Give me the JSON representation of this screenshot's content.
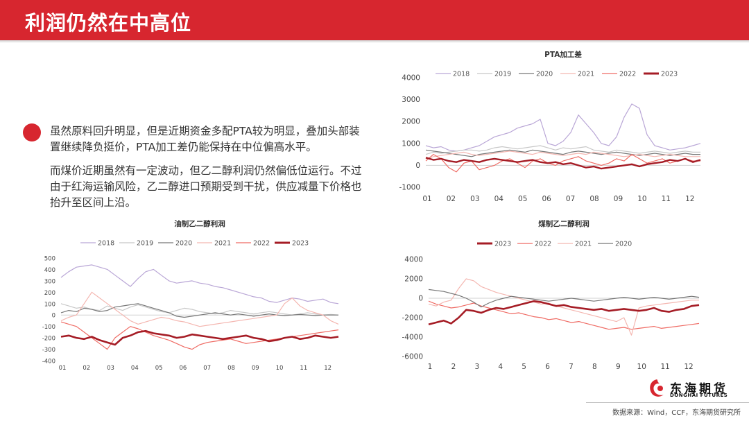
{
  "page": {
    "title": "利润仍然在中高位",
    "paragraph1": "虽然原料回升明显，但是近期资金多配PTA较为明显，叠加头部装置继续降负挺价，PTA加工差仍能保持在中位偏高水平。",
    "paragraph2": "而煤价近期虽然有一定波动，但乙二醇利润仍然偏低位运行。不过由于红海运输风险，乙二醇进口预期受到干扰，供应减量下价格也抬升至区间上沿。",
    "source": "数据来源：Wind，CCF，东海期货研究所",
    "logo_name": "东海期货",
    "logo_sub": "DONGHAI FUTURES"
  },
  "chart_data": [
    {
      "id": "pta",
      "type": "line",
      "title": "PTA加工差",
      "legend_position": "top",
      "x_ticks": [
        "01",
        "02",
        "03",
        "04",
        "05",
        "06",
        "07",
        "08",
        "09",
        "10",
        "11",
        "12"
      ],
      "y_ticks": [
        "4000",
        "3000",
        "2000",
        "1000",
        "0",
        "-1000"
      ],
      "ylim": [
        -1000,
        4000
      ],
      "series": [
        {
          "name": "2018",
          "color": "#b9a6d6",
          "width": 1.2,
          "values": [
            900,
            800,
            850,
            700,
            650,
            700,
            800,
            900,
            1100,
            1300,
            1400,
            1500,
            1700,
            1800,
            1900,
            2100,
            1000,
            900,
            1100,
            1500,
            2300,
            1900,
            1500,
            1000,
            900,
            1300,
            2200,
            2800,
            2600,
            1400,
            900,
            800,
            700,
            750,
            800,
            900,
            1000
          ]
        },
        {
          "name": "2019",
          "color": "#c8c8c8",
          "width": 1.2,
          "values": [
            500,
            600,
            550,
            600,
            650,
            700,
            700,
            650,
            700,
            800,
            850,
            800,
            750,
            800,
            850,
            900,
            800,
            700,
            800,
            750,
            800,
            850,
            700,
            650,
            600,
            700,
            650,
            600,
            550,
            600,
            650,
            600,
            550,
            600,
            650,
            600,
            600
          ]
        },
        {
          "name": "2020",
          "color": "#777777",
          "width": 1.2,
          "values": [
            700,
            650,
            600,
            550,
            500,
            450,
            400,
            500,
            550,
            600,
            650,
            700,
            650,
            600,
            700,
            650,
            600,
            550,
            500,
            600,
            650,
            600,
            550,
            500,
            550,
            600,
            550,
            500,
            450,
            500,
            550,
            500,
            450,
            500,
            550,
            500,
            500
          ]
        },
        {
          "name": "2021",
          "color": "#f4b6b0",
          "width": 1.2,
          "values": [
            300,
            400,
            450,
            500,
            550,
            600,
            500,
            450,
            500,
            550,
            600,
            650,
            600,
            550,
            500,
            600,
            550,
            500,
            450,
            500,
            550,
            500,
            600,
            550,
            500,
            450,
            400,
            450,
            500,
            450,
            400,
            450,
            500,
            450,
            400,
            400,
            400
          ]
        },
        {
          "name": "2022",
          "color": "#ef6b64",
          "width": 1.2,
          "values": [
            200,
            500,
            300,
            -100,
            -300,
            100,
            200,
            -200,
            -100,
            0,
            200,
            300,
            100,
            -100,
            200,
            300,
            100,
            0,
            200,
            300,
            400,
            200,
            100,
            0,
            100,
            300,
            200,
            500,
            300,
            100,
            200,
            300,
            100,
            200,
            300,
            200,
            200
          ]
        },
        {
          "name": "2023",
          "color": "#a51c25",
          "width": 2.4,
          "values": [
            350,
            250,
            300,
            200,
            150,
            250,
            200,
            150,
            250,
            300,
            250,
            200,
            150,
            200,
            250,
            150,
            100,
            150,
            50,
            100,
            0,
            -100,
            -50,
            -150,
            -100,
            -50,
            0,
            50,
            -50,
            50,
            100,
            150,
            250,
            200,
            300,
            150,
            250
          ]
        }
      ]
    },
    {
      "id": "oil_meg",
      "type": "line",
      "title": "油制乙二醇利润",
      "legend_position": "top",
      "x_ticks": [
        "01",
        "02",
        "03",
        "04",
        "05",
        "06",
        "07",
        "08",
        "09",
        "10",
        "11",
        "12"
      ],
      "y_ticks": [
        "500",
        "400",
        "300",
        "200",
        "100",
        "0",
        "-100",
        "-200",
        "-300",
        "-400"
      ],
      "ylim": [
        -400,
        500
      ],
      "series": [
        {
          "name": "2018",
          "color": "#b9a6d6",
          "width": 1.2,
          "values": [
            330,
            380,
            420,
            430,
            440,
            420,
            400,
            350,
            300,
            250,
            320,
            380,
            400,
            350,
            300,
            280,
            290,
            300,
            280,
            270,
            250,
            240,
            220,
            200,
            180,
            160,
            150,
            120,
            110,
            130,
            150,
            140,
            120,
            130,
            140,
            110,
            100
          ]
        },
        {
          "name": "2019",
          "color": "#c8c8c8",
          "width": 1.2,
          "values": [
            100,
            80,
            60,
            70,
            50,
            40,
            80,
            60,
            40,
            70,
            90,
            70,
            50,
            30,
            20,
            40,
            60,
            50,
            30,
            20,
            10,
            20,
            40,
            30,
            20,
            10,
            20,
            30,
            20,
            10,
            0,
            10,
            20,
            10,
            0,
            5,
            0
          ]
        },
        {
          "name": "2020",
          "color": "#777777",
          "width": 1.2,
          "values": [
            20,
            40,
            30,
            60,
            50,
            30,
            40,
            70,
            80,
            90,
            100,
            80,
            60,
            40,
            20,
            -10,
            -20,
            -10,
            0,
            10,
            20,
            10,
            0,
            10,
            0,
            -10,
            0,
            10,
            0,
            -5,
            0,
            5,
            0,
            -5,
            0,
            0,
            0
          ]
        },
        {
          "name": "2021",
          "color": "#f4b6b0",
          "width": 1.2,
          "values": [
            -50,
            -20,
            0,
            100,
            200,
            150,
            100,
            50,
            0,
            -50,
            -80,
            -60,
            -40,
            -20,
            -30,
            -50,
            -60,
            -80,
            -100,
            -90,
            -80,
            -70,
            -60,
            -50,
            -40,
            -30,
            -20,
            -10,
            0,
            100,
            150,
            80,
            40,
            20,
            0,
            -50,
            -80
          ]
        },
        {
          "name": "2022",
          "color": "#ef6b64",
          "width": 1.2,
          "values": [
            -60,
            -80,
            -100,
            -150,
            -200,
            -250,
            -300,
            -200,
            -150,
            -100,
            -120,
            -150,
            -180,
            -200,
            -220,
            -250,
            -280,
            -300,
            -260,
            -240,
            -230,
            -220,
            -210,
            -230,
            -250,
            -240,
            -230,
            -220,
            -210,
            -200,
            -190,
            -180,
            -170,
            -160,
            -150,
            -140,
            -130
          ]
        },
        {
          "name": "2023",
          "color": "#a51c25",
          "width": 2.6,
          "values": [
            -190,
            -180,
            -200,
            -210,
            -190,
            -220,
            -240,
            -260,
            -200,
            -180,
            -150,
            -140,
            -160,
            -170,
            -180,
            -200,
            -190,
            -170,
            -180,
            -190,
            -200,
            -210,
            -200,
            -190,
            -180,
            -200,
            -210,
            -230,
            -220,
            -200,
            -190,
            -210,
            -200,
            -180,
            -190,
            -200,
            -190
          ]
        }
      ]
    },
    {
      "id": "coal_meg",
      "type": "line",
      "title": "煤制乙二醇利润",
      "legend_position": "top",
      "x_ticks": [
        "1",
        "2",
        "3",
        "4",
        "5",
        "6",
        "7",
        "8",
        "9",
        "10",
        "11",
        "12"
      ],
      "y_ticks": [
        "4000",
        "2000",
        "0",
        "-2000",
        "-4000",
        "-6000"
      ],
      "ylim": [
        -6000,
        4000
      ],
      "series": [
        {
          "name": "2023",
          "color": "#a51c25",
          "width": 2.6,
          "values": [
            -2700,
            -2500,
            -2300,
            -2600,
            -2000,
            -1200,
            -1300,
            -1500,
            -1200,
            -1000,
            -1100,
            -900,
            -700,
            -500,
            -300,
            -400,
            -600,
            -800,
            -700,
            -900,
            -1000,
            -1100,
            -1200,
            -1100,
            -1300,
            -1200,
            -1100,
            -1200,
            -1300,
            -1200,
            -1000,
            -1300,
            -1400,
            -1200,
            -1100,
            -800,
            -700
          ]
        },
        {
          "name": "2022",
          "color": "#ef6b64",
          "width": 1.2,
          "values": [
            -300,
            -600,
            -800,
            -1000,
            -900,
            -700,
            -500,
            -800,
            -1000,
            -1200,
            -1400,
            -1600,
            -1500,
            -1700,
            -1900,
            -2000,
            -2200,
            -2100,
            -2300,
            -2500,
            -2400,
            -2600,
            -2800,
            -3000,
            -3200,
            -3100,
            -3000,
            -3200,
            -3100,
            -3000,
            -2900,
            -3100,
            -3000,
            -2900,
            -2800,
            -2700,
            -2600
          ]
        },
        {
          "name": "2021",
          "color": "#f4b6b0",
          "width": 1.2,
          "values": [
            -600,
            -800,
            -400,
            -200,
            1000,
            2000,
            1800,
            1200,
            900,
            600,
            400,
            200,
            0,
            -200,
            -400,
            -600,
            -500,
            -800,
            -1000,
            -1200,
            -1400,
            -1600,
            -1800,
            -2000,
            -2200,
            -2400,
            -2000,
            -3800,
            -1000,
            -800,
            -700,
            -600,
            -500,
            -400,
            -300,
            -200,
            -200
          ]
        },
        {
          "name": "2020",
          "color": "#777777",
          "width": 1.2,
          "values": [
            900,
            800,
            700,
            500,
            300,
            0,
            -400,
            -900,
            -500,
            -200,
            0,
            200,
            100,
            0,
            -100,
            -200,
            -300,
            -200,
            -100,
            0,
            -100,
            -200,
            -300,
            -200,
            -100,
            0,
            100,
            0,
            -100,
            0,
            100,
            0,
            -100,
            0,
            100,
            200,
            100
          ]
        }
      ]
    }
  ]
}
